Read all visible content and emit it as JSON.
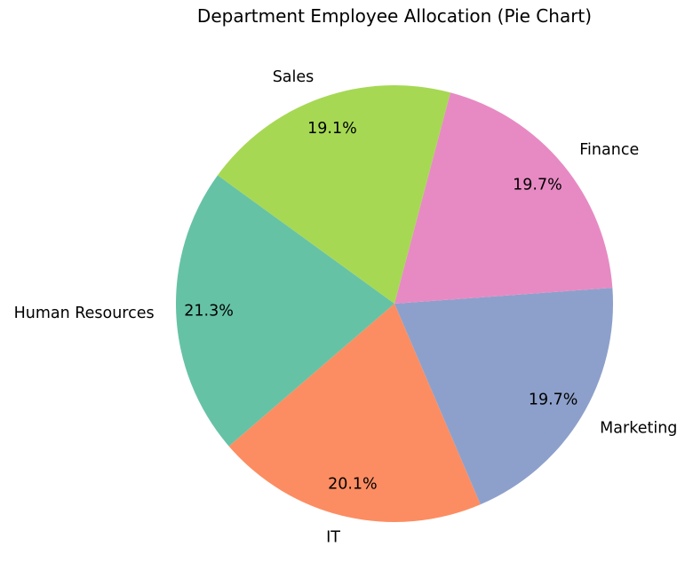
{
  "chart_data": {
    "type": "pie",
    "title": "Department Employee Allocation (Pie Chart)",
    "slices": [
      {
        "label": "Human Resources",
        "value": 21.3,
        "pct_label": "21.3%",
        "color": "#66c2a5"
      },
      {
        "label": "IT",
        "value": 20.1,
        "pct_label": "20.1%",
        "color": "#fc8d62"
      },
      {
        "label": "Marketing",
        "value": 19.7,
        "pct_label": "19.7%",
        "color": "#8da0cb"
      },
      {
        "label": "Finance",
        "value": 19.7,
        "pct_label": "19.7%",
        "color": "#e78ac3"
      },
      {
        "label": "Sales",
        "value": 19.1,
        "pct_label": "19.1%",
        "color": "#a6d854"
      }
    ]
  }
}
